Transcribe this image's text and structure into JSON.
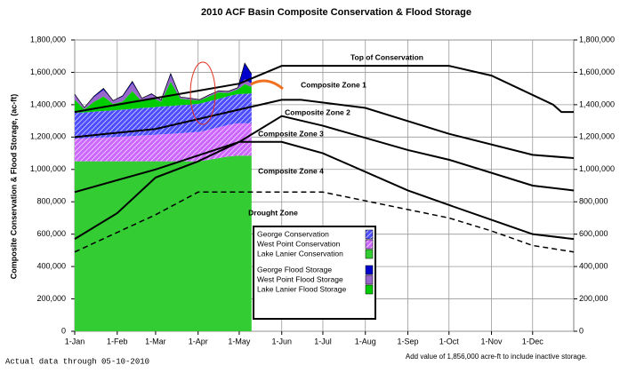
{
  "chart_data": {
    "type": "stacked_area",
    "title": "2010 ACF Basin Composite Conservation & Flood Storage",
    "ylabel": "Composite Conservation & Flood Storage, (ac-ft)",
    "footnote_left": "Actual data through 05-10-2010",
    "footnote_right": "Add value of 1,856,000 acre-ft to include inactive storage.",
    "xlim": [
      1,
      365
    ],
    "xticks": [
      {
        "value": 1,
        "label": "1-Jan"
      },
      {
        "value": 32,
        "label": "1-Feb"
      },
      {
        "value": 60,
        "label": "1-Mar"
      },
      {
        "value": 91,
        "label": "1-Apr"
      },
      {
        "value": 121,
        "label": "1-May"
      },
      {
        "value": 152,
        "label": "1-Jun"
      },
      {
        "value": 182,
        "label": "1-Jul"
      },
      {
        "value": 213,
        "label": "1-Aug"
      },
      {
        "value": 244,
        "label": "1-Sep"
      },
      {
        "value": 274,
        "label": "1-Oct"
      },
      {
        "value": 305,
        "label": "1-Nov"
      },
      {
        "value": 335,
        "label": "1-Dec"
      }
    ],
    "ylim": [
      0,
      1800000
    ],
    "yticks": [
      0,
      {
        "value": 200000,
        "label": "200,000"
      },
      {
        "value": 400000,
        "label": "400,000"
      },
      {
        "value": 600000,
        "label": "600,000"
      },
      {
        "value": 800000,
        "label": "800,000"
      },
      {
        "value": 1000000,
        "label": "1,000,000"
      },
      {
        "value": 1200000,
        "label": "1,200,000"
      },
      {
        "value": 1400000,
        "label": "1,400,000"
      },
      {
        "value": 1600000,
        "label": "1,600,000"
      },
      {
        "value": 1800000,
        "label": "1,800,000"
      }
    ],
    "grid": true,
    "right_axis": true,
    "x": [
      1,
      8,
      15,
      22,
      29,
      36,
      43,
      50,
      57,
      64,
      71,
      78,
      85,
      92,
      99,
      106,
      113,
      120,
      125,
      130
    ],
    "series": [
      {
        "name": "George Conservation",
        "color": "#4d4dff",
        "hatched": true,
        "values": [
          160000,
          160000,
          162000,
          163000,
          165000,
          167000,
          168000,
          170000,
          170000,
          172000,
          172000,
          173000,
          173000,
          174000,
          175000,
          176000,
          178000,
          180000,
          182000,
          185000
        ]
      },
      {
        "name": "West Point Conservation",
        "color": "#cc66ff",
        "hatched": true,
        "values": [
          140000,
          142000,
          145000,
          148000,
          150000,
          153000,
          156000,
          160000,
          163000,
          167000,
          170000,
          174000,
          178000,
          182000,
          186000,
          190000,
          195000,
          200000,
          200000,
          200000
        ]
      },
      {
        "name": "Lake Lanier Conservation",
        "color": "#33cc33",
        "hatched": false,
        "values": [
          1050000,
          1050000,
          1050000,
          1050000,
          1050000,
          1050000,
          1050000,
          1050000,
          1050000,
          1050000,
          1050000,
          1050000,
          1050000,
          1050000,
          1060000,
          1070000,
          1080000,
          1085000,
          1085000,
          1085000
        ]
      },
      {
        "name": "George Flood Storage",
        "color": "#0000cc",
        "hatched": false,
        "values": [
          5000,
          0,
          5000,
          10000,
          0,
          5000,
          10000,
          0,
          5000,
          0,
          10000,
          0,
          0,
          0,
          0,
          0,
          0,
          0,
          100000,
          60000
        ]
      },
      {
        "name": "West Point Flood Storage",
        "color": "#9966cc",
        "hatched": false,
        "values": [
          30000,
          10000,
          30000,
          40000,
          20000,
          30000,
          50000,
          20000,
          20000,
          10000,
          40000,
          10000,
          10000,
          5000,
          10000,
          10000,
          10000,
          10000,
          30000,
          20000
        ]
      },
      {
        "name": "Lake Lanier Flood Storage",
        "color": "#00cc00",
        "hatched": false,
        "values": [
          80000,
          20000,
          60000,
          90000,
          40000,
          50000,
          110000,
          40000,
          60000,
          30000,
          150000,
          40000,
          30000,
          20000,
          30000,
          40000,
          20000,
          30000,
          60000,
          40000
        ]
      }
    ],
    "guide_curves": [
      {
        "style": "solid",
        "x": [
          1,
          121,
          152,
          274,
          305,
          350,
          356,
          365
        ],
        "values": [
          1355000,
          1530000,
          1640000,
          1640000,
          1580000,
          1400000,
          1355000,
          1355000
        ]
      },
      {
        "style": "solid",
        "x": [
          1,
          60,
          121,
          152,
          166,
          213,
          274,
          335,
          365
        ],
        "values": [
          1200000,
          1250000,
          1370000,
          1430000,
          1430000,
          1380000,
          1220000,
          1090000,
          1070000
        ]
      },
      {
        "style": "solid",
        "x": [
          1,
          60,
          121,
          152,
          182,
          244,
          274,
          335,
          365
        ],
        "values": [
          860000,
          1000000,
          1170000,
          1330000,
          1270000,
          1120000,
          1060000,
          900000,
          870000
        ]
      },
      {
        "style": "solid",
        "x": [
          1,
          32,
          60,
          91,
          121,
          152,
          182,
          244,
          274,
          335,
          365
        ],
        "values": [
          570000,
          730000,
          950000,
          1050000,
          1170000,
          1170000,
          1100000,
          870000,
          780000,
          600000,
          570000
        ]
      },
      {
        "style": "dashed",
        "x": [
          1,
          60,
          91,
          182,
          274,
          305,
          335,
          365
        ],
        "values": [
          490000,
          720000,
          860000,
          860000,
          700000,
          620000,
          530000,
          490000
        ]
      }
    ],
    "annotations": [
      "Top of Conservation",
      "Composite Zone 1",
      "Composite Zone 2",
      "Composite Zone 3",
      "Composite Zone 4",
      "Drought Zone"
    ]
  }
}
